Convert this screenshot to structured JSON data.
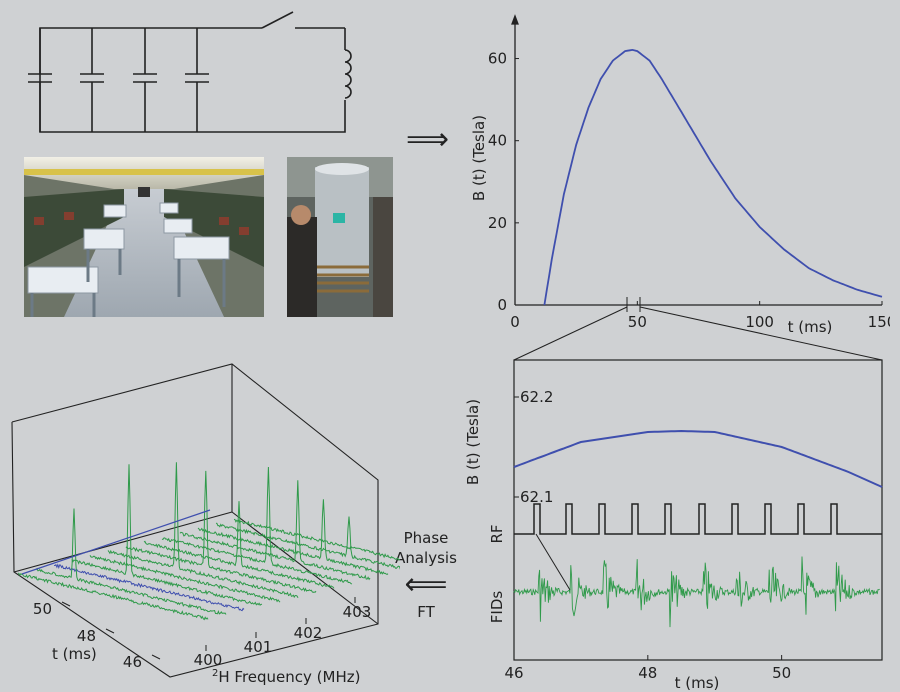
{
  "colors": {
    "background": "#cfd1d3",
    "field_curve": "#3f4fae",
    "fid_green": "#2f9a4a",
    "line": "#222222"
  },
  "top_chart": {
    "ylabel": "B (t)  (Tesla)",
    "xlabel": "t (ms)",
    "xticks": [
      "0",
      "50",
      "100",
      "150"
    ],
    "yticks": [
      "0",
      "20",
      "40",
      "60"
    ]
  },
  "zoom_chart": {
    "ylabel_field": "B (t) (Tesla)",
    "ylabel_rf": "RF",
    "ylabel_fid": "FIDs",
    "xlabel": "t (ms)",
    "xticks": [
      "46",
      "48",
      "50"
    ],
    "yticks": [
      "62.2",
      "62.1"
    ]
  },
  "spectra_3d": {
    "t_label": "t (ms)",
    "t_ticks": [
      "50",
      "48",
      "46"
    ],
    "freq_label_pre": "2",
    "freq_label": "H Frequency (MHz)",
    "freq_ticks": [
      "400",
      "401",
      "402",
      "403"
    ]
  },
  "arrows": {
    "right_arrow": "⟹",
    "left_arrow": "⟸",
    "phase_line1": "Phase",
    "phase_line2": "Analysis",
    "ft": "FT"
  },
  "chart_data": [
    {
      "type": "line",
      "xlabel": "t (ms)",
      "ylabel": "B (t)  (Tesla)",
      "xlim": [
        0,
        150
      ],
      "ylim": [
        0,
        65
      ],
      "series": [
        {
          "x": [
            12,
            15,
            20,
            25,
            30,
            35,
            40,
            45,
            48,
            50,
            55,
            60,
            70,
            80,
            90,
            100,
            110,
            120,
            130,
            140,
            150
          ],
          "values": [
            0,
            11,
            27,
            39,
            48,
            55,
            59.5,
            61.8,
            62.1,
            61.8,
            59.5,
            55,
            45,
            35,
            26,
            19,
            13.5,
            9,
            6,
            3.7,
            2
          ]
        }
      ]
    },
    {
      "type": "line",
      "xlabel": "t (ms)",
      "ylabel": "B (t) (Tesla)",
      "xlim": [
        46,
        51.5
      ],
      "series": [
        {
          "x": [
            46,
            47,
            48,
            48.5,
            49,
            50,
            51,
            51.5
          ],
          "values": [
            62.13,
            62.155,
            62.165,
            62.166,
            62.165,
            62.15,
            62.125,
            62.11
          ]
        }
      ]
    }
  ]
}
